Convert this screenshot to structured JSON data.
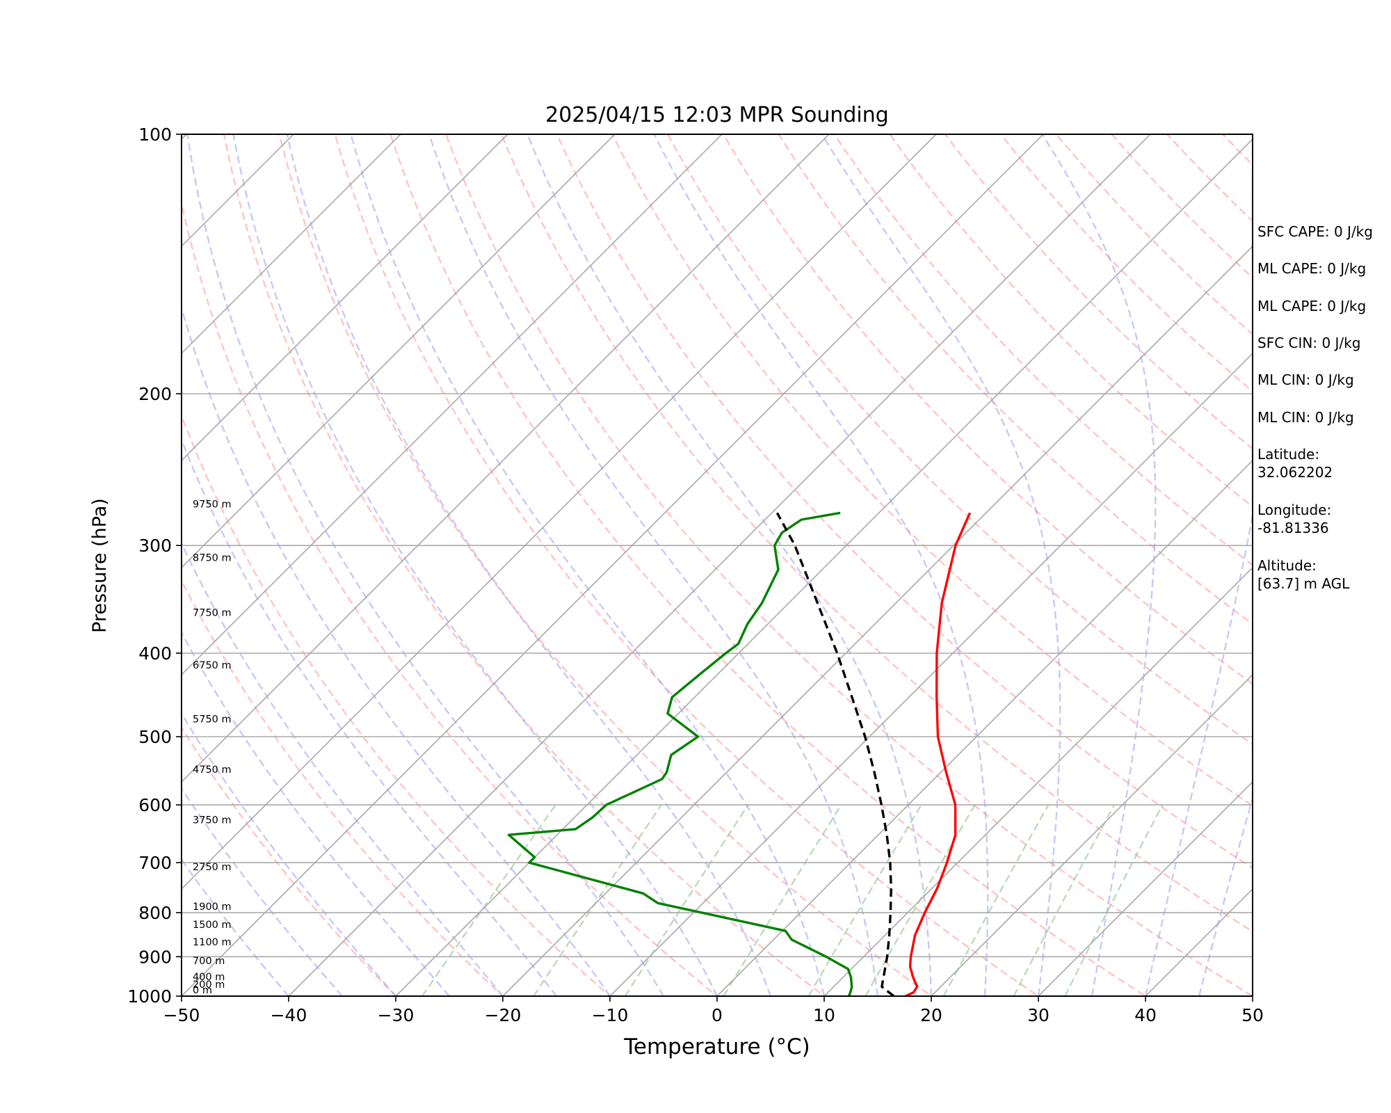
{
  "chart_data": {
    "type": "line",
    "title": "2025/04/15 12:03 MPR Sounding",
    "xlabel": "Temperature (°C)",
    "ylabel": "Pressure (hPa)",
    "xlim": [
      -50,
      50
    ],
    "ylim": [
      1000,
      100
    ],
    "y_scale": "log",
    "skew": "skew-T",
    "grid": true,
    "x_ticks": [
      "−50",
      "−40",
      "−30",
      "−20",
      "−10",
      "0",
      "10",
      "20",
      "30",
      "40",
      "50"
    ],
    "y_ticks": [
      "100",
      "200",
      "300",
      "400",
      "500",
      "600",
      "700",
      "800",
      "900",
      "1000"
    ],
    "height_labels": [
      {
        "p": 1000,
        "label": "0 m"
      },
      {
        "p": 985,
        "label": "200 m"
      },
      {
        "p": 965,
        "label": "400 m"
      },
      {
        "p": 925,
        "label": "700 m"
      },
      {
        "p": 880,
        "label": "1100 m"
      },
      {
        "p": 840,
        "label": "1500 m"
      },
      {
        "p": 800,
        "label": "1900 m"
      },
      {
        "p": 720,
        "label": "2750 m"
      },
      {
        "p": 635,
        "label": "3750 m"
      },
      {
        "p": 555,
        "label": "4750 m"
      },
      {
        "p": 485,
        "label": "5750 m"
      },
      {
        "p": 420,
        "label": "6750 m"
      },
      {
        "p": 365,
        "label": "7750 m"
      },
      {
        "p": 315,
        "label": "8750 m"
      },
      {
        "p": 273,
        "label": "9750 m"
      }
    ],
    "series": [
      {
        "role": "temperature",
        "color": "#ff0000",
        "points": [
          [
            1000,
            17.6
          ],
          [
            990,
            18.0
          ],
          [
            975,
            17.8
          ],
          [
            950,
            16.5
          ],
          [
            925,
            15.3
          ],
          [
            900,
            14.4
          ],
          [
            850,
            12.8
          ],
          [
            800,
            11.6
          ],
          [
            750,
            10.5
          ],
          [
            700,
            9.0
          ],
          [
            650,
            7.2
          ],
          [
            600,
            4.4
          ],
          [
            550,
            0.5
          ],
          [
            500,
            -3.6
          ],
          [
            450,
            -7.4
          ],
          [
            400,
            -11.5
          ],
          [
            350,
            -15.7
          ],
          [
            300,
            -19.8
          ],
          [
            275,
            -21.5
          ]
        ]
      },
      {
        "role": "dewpoint",
        "color": "#008000",
        "points": [
          [
            1000,
            12.3
          ],
          [
            990,
            12.1
          ],
          [
            975,
            11.7
          ],
          [
            950,
            10.7
          ],
          [
            930,
            9.7
          ],
          [
            900,
            6.5
          ],
          [
            860,
            1.7
          ],
          [
            840,
            0.3
          ],
          [
            780,
            -14.2
          ],
          [
            760,
            -16.5
          ],
          [
            700,
            -30.0
          ],
          [
            690,
            -30.0
          ],
          [
            650,
            -34.5
          ],
          [
            640,
            -28.8
          ],
          [
            620,
            -28.3
          ],
          [
            600,
            -28.2
          ],
          [
            560,
            -25.4
          ],
          [
            550,
            -25.6
          ],
          [
            525,
            -26.8
          ],
          [
            500,
            -26.0
          ],
          [
            470,
            -31.0
          ],
          [
            450,
            -32.1
          ],
          [
            420,
            -31.6
          ],
          [
            400,
            -31.2
          ],
          [
            390,
            -30.9
          ],
          [
            370,
            -31.9
          ],
          [
            350,
            -32.5
          ],
          [
            320,
            -34.1
          ],
          [
            300,
            -36.7
          ],
          [
            290,
            -37.2
          ],
          [
            280,
            -36.6
          ],
          [
            275,
            -33.6
          ]
        ]
      },
      {
        "role": "parcel",
        "color": "#000000",
        "dashed": true,
        "points": [
          [
            1000,
            16.5
          ],
          [
            975,
            14.5
          ],
          [
            900,
            12.2
          ],
          [
            850,
            10.4
          ],
          [
            800,
            8.4
          ],
          [
            750,
            6.2
          ],
          [
            700,
            3.7
          ],
          [
            650,
            0.8
          ],
          [
            600,
            -2.5
          ],
          [
            550,
            -6.2
          ],
          [
            500,
            -10.4
          ],
          [
            450,
            -15.3
          ],
          [
            400,
            -20.8
          ],
          [
            350,
            -27.3
          ],
          [
            300,
            -34.8
          ],
          [
            275,
            -39.5
          ]
        ]
      }
    ]
  },
  "stats": [
    {
      "label": "SFC CAPE: 0 J/kg"
    },
    {
      "label": "ML CAPE: 0 J/kg"
    },
    {
      "label": "ML CAPE: 0 J/kg"
    },
    {
      "label": "SFC CIN: 0 J/kg"
    },
    {
      "label": "ML CIN: 0 J/kg"
    },
    {
      "label": "ML CIN: 0 J/kg"
    },
    {
      "label": "Latitude:\n32.062202"
    },
    {
      "label": "Longitude:\n-81.81336"
    },
    {
      "label": "Altitude:\n[63.7] m AGL"
    }
  ]
}
